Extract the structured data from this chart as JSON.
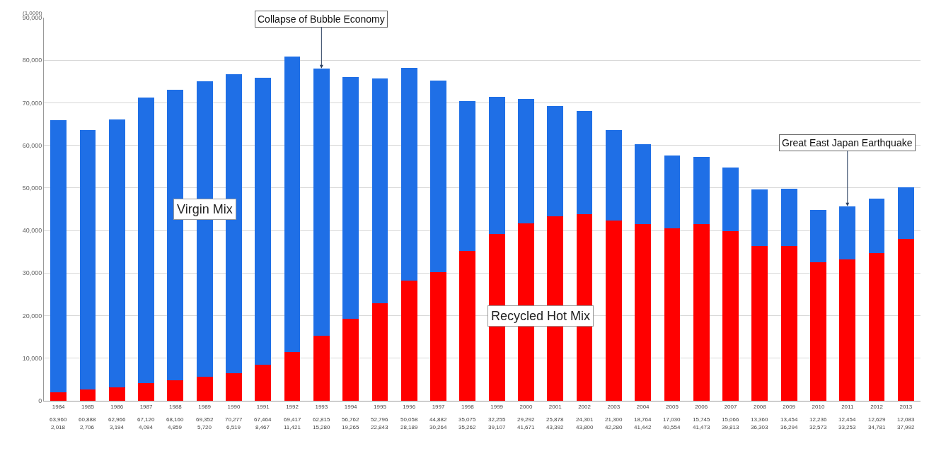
{
  "chart_data": {
    "type": "bar",
    "stacked": true,
    "ylabel": "(1,000t)",
    "categories": [
      "1984",
      "1985",
      "1986",
      "1987",
      "1988",
      "1989",
      "1990",
      "1991",
      "1992",
      "1993",
      "1994",
      "1995",
      "1996",
      "1997",
      "1998",
      "1999",
      "2000",
      "2001",
      "2002",
      "2003",
      "2004",
      "2005",
      "2006",
      "2007",
      "2008",
      "2009",
      "2010",
      "2011",
      "2012",
      "2013"
    ],
    "series": [
      {
        "name": "Recycled Hot Mix",
        "color": "#ff0000",
        "values": [
          2018,
          2706,
          3194,
          4094,
          4859,
          5720,
          6519,
          8467,
          11421,
          15280,
          19265,
          22843,
          28189,
          30264,
          35262,
          39107,
          41671,
          43392,
          43800,
          42280,
          41442,
          40554,
          41473,
          39813,
          36303,
          36294,
          32573,
          33253,
          34781,
          37992
        ],
        "value_labels": [
          "2,018",
          "2,706",
          "3,194",
          "4,094",
          "4,859",
          "5,720",
          "6,519",
          "8,467",
          "11,421",
          "15,280",
          "19,265",
          "22,843",
          "28,189",
          "30,264",
          "35,262",
          "39,107",
          "41,671",
          "43,392",
          "43,800",
          "42,280",
          "41,442",
          "40,554",
          "41,473",
          "39,813",
          "36,303",
          "36,294",
          "32,573",
          "33,253",
          "34,781",
          "37,992"
        ]
      },
      {
        "name": "Virgin Mix",
        "color": "#1f6fe6",
        "values": [
          63960,
          60888,
          62966,
          67120,
          68160,
          69352,
          70277,
          67464,
          69417,
          62815,
          56762,
          52796,
          50058,
          44882,
          35075,
          32255,
          29292,
          25878,
          24301,
          21300,
          18764,
          17030,
          15745,
          15066,
          13360,
          13454,
          12236,
          12454,
          12629,
          12083
        ],
        "value_labels": [
          "63,960",
          "60,888",
          "62,966",
          "67,120",
          "68,160",
          "69,352",
          "70,277",
          "67,464",
          "69,417",
          "62,815",
          "56,762",
          "52,796",
          "50,058",
          "44,882",
          "35,075",
          "32,255",
          "29,292",
          "25,878",
          "24,301",
          "21,300",
          "18,764",
          "17,030",
          "15,745",
          "15,066",
          "13,360",
          "13,454",
          "12,236",
          "12,454",
          "12,629",
          "12,083"
        ]
      }
    ],
    "ylim": [
      0,
      90000
    ],
    "yticks": [
      0,
      {
        "value": 10000,
        "label": "10,000"
      },
      {
        "value": 20000,
        "label": "20,000"
      },
      {
        "value": 30000,
        "label": "30,000"
      },
      {
        "value": 40000,
        "label": "40,000"
      },
      {
        "value": 50000,
        "label": "50,000"
      },
      {
        "value": 60000,
        "label": "60,000"
      },
      {
        "value": 70000,
        "label": "70,000"
      },
      {
        "value": 80000,
        "label": "80,000"
      },
      {
        "value": 90000,
        "label": "90,000"
      }
    ],
    "grid": "y",
    "annotations": [
      {
        "text": "Collapse of Bubble Economy",
        "x": "1993",
        "y": 78095
      },
      {
        "text": "Great East Japan Earthquake",
        "x": "2011",
        "y": 45707
      }
    ]
  }
}
